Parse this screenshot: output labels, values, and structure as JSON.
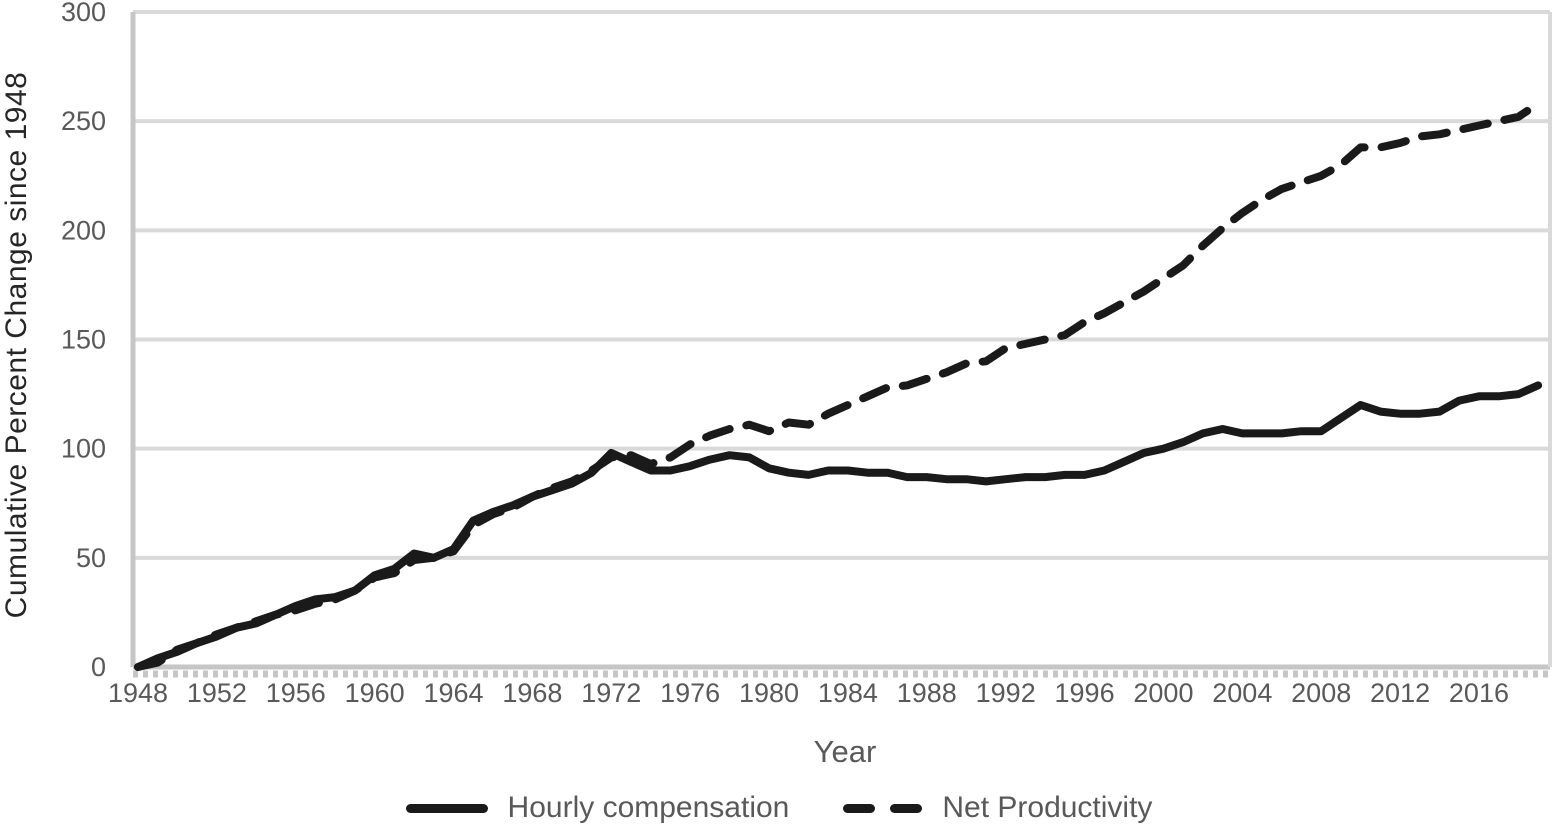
{
  "chart_data": {
    "type": "line",
    "title": "",
    "xlabel": "Year",
    "ylabel": "Cumulative Percent Change since 1948",
    "xlim": [
      1948,
      2019
    ],
    "ylim": [
      0,
      300
    ],
    "x_ticks": [
      1948,
      1952,
      1956,
      1960,
      1964,
      1968,
      1972,
      1976,
      1980,
      1984,
      1988,
      1992,
      1996,
      2000,
      2004,
      2008,
      2012,
      2016
    ],
    "y_ticks": [
      0,
      50,
      100,
      150,
      200,
      250,
      300
    ],
    "grid": "horizontal",
    "legend_position": "bottom",
    "years": [
      1948,
      1949,
      1950,
      1951,
      1952,
      1953,
      1954,
      1955,
      1956,
      1957,
      1958,
      1959,
      1960,
      1961,
      1962,
      1963,
      1964,
      1965,
      1966,
      1967,
      1968,
      1969,
      1970,
      1971,
      1972,
      1973,
      1974,
      1975,
      1976,
      1977,
      1978,
      1979,
      1980,
      1981,
      1982,
      1983,
      1984,
      1985,
      1986,
      1987,
      1988,
      1989,
      1990,
      1991,
      1992,
      1993,
      1994,
      1995,
      1996,
      1997,
      1998,
      1999,
      2000,
      2001,
      2002,
      2003,
      2004,
      2005,
      2006,
      2007,
      2008,
      2009,
      2010,
      2011,
      2012,
      2013,
      2014,
      2015,
      2016,
      2017,
      2018,
      2019
    ],
    "series": [
      {
        "name": "Hourly compensation",
        "line_style": "solid",
        "values": [
          0,
          4,
          7,
          11,
          14,
          18,
          20,
          24,
          28,
          31,
          32,
          35,
          42,
          45,
          52,
          50,
          54,
          67,
          71,
          74,
          78,
          81,
          84,
          89,
          98,
          94,
          90,
          90,
          92,
          95,
          97,
          96,
          91,
          89,
          88,
          90,
          90,
          89,
          89,
          87,
          87,
          86,
          86,
          85,
          86,
          87,
          87,
          88,
          88,
          90,
          94,
          98,
          100,
          103,
          107,
          109,
          107,
          107,
          107,
          108,
          108,
          114,
          120,
          117,
          116,
          116,
          117,
          122,
          124,
          124,
          125,
          129
        ]
      },
      {
        "name": "Net Productivity",
        "line_style": "dashed",
        "values": [
          0,
          2,
          8,
          11,
          15,
          18,
          21,
          24,
          26,
          29,
          31,
          35,
          41,
          43,
          49,
          50,
          53,
          65,
          70,
          73,
          78,
          82,
          85,
          90,
          96,
          97,
          93,
          96,
          102,
          106,
          109,
          111,
          108,
          112,
          111,
          116,
          120,
          124,
          128,
          129,
          132,
          135,
          139,
          140,
          146,
          148,
          150,
          152,
          158,
          162,
          167,
          172,
          178,
          184,
          193,
          201,
          208,
          214,
          219,
          222,
          225,
          230,
          238,
          238,
          240,
          243,
          244,
          246,
          248,
          250,
          252,
          258
        ]
      }
    ]
  },
  "axis_titles": {
    "y": "Cumulative Percent Change since 1948",
    "x": "Year"
  },
  "legend": {
    "items": [
      {
        "label": "Hourly compensation",
        "style": "solid"
      },
      {
        "label": "Net Productivity",
        "style": "dashed"
      }
    ]
  },
  "colors": {
    "line": "#1a1a1a",
    "gridline": "#d9d9d9",
    "axis_line": "#c6c6c6",
    "tick_text": "#595959",
    "axis_title_y": "#262626",
    "axis_title_x": "#595959",
    "background": "#ffffff"
  }
}
